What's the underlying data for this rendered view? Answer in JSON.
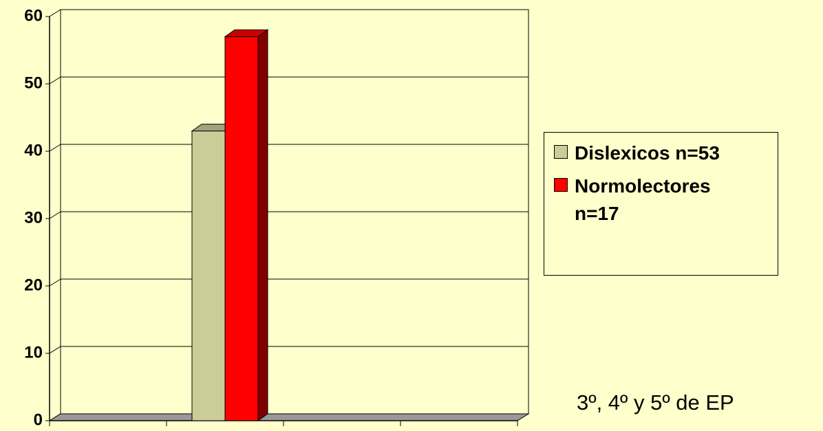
{
  "chart_data": {
    "type": "bar3d",
    "categories": [
      null,
      null,
      null,
      null
    ],
    "series": [
      {
        "name": "Dislexicos n=53",
        "color": "#cccc99",
        "values": [
          null,
          43,
          null,
          null
        ]
      },
      {
        "name": "Normolectores n=17",
        "color": "#ff0000",
        "values": [
          null,
          57,
          null,
          null
        ]
      }
    ],
    "ylim": [
      0,
      60
    ],
    "yticks": [
      0,
      10,
      20,
      30,
      40,
      50,
      60
    ],
    "grid": true,
    "legend": "right",
    "annotation": "3º, 4º y 5º de EP"
  }
}
